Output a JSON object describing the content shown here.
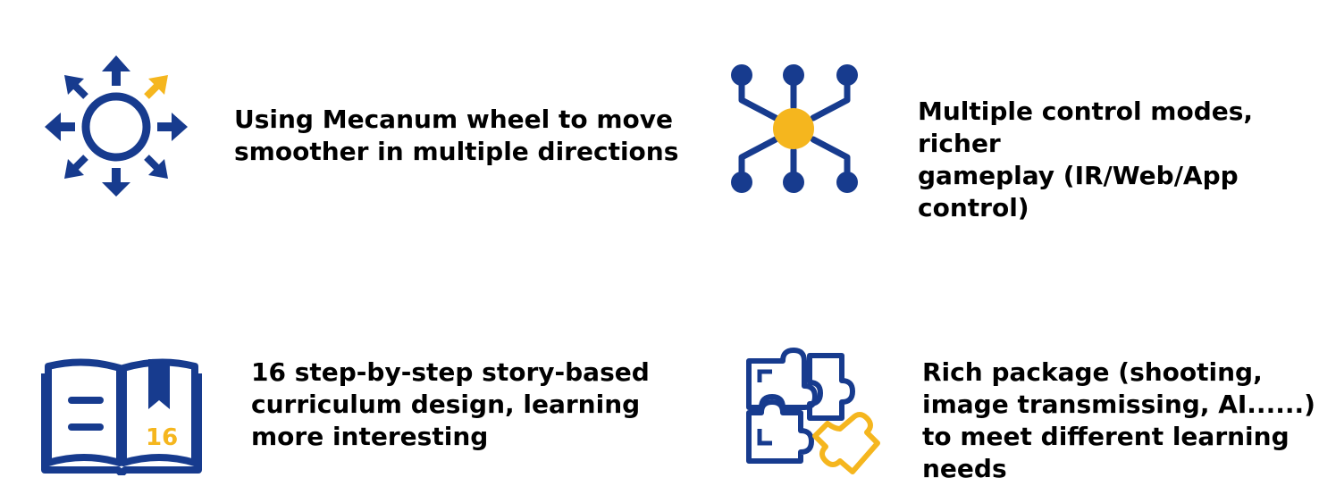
{
  "colors": {
    "primary": "#173b8e",
    "accent": "#f5b61e",
    "text": "#000000"
  },
  "features": [
    {
      "icon": "move-directions-icon",
      "text": "Using Mecanum wheel  to move\nsmoother in multiple directions"
    },
    {
      "icon": "control-modes-icon",
      "text": "Multiple control modes, richer\ngameplay (IR/Web/App\ncontrol)"
    },
    {
      "icon": "curriculum-book-icon",
      "badge": "16",
      "text": "16 step-by-step story-based\ncurriculum design, learning\nmore interesting"
    },
    {
      "icon": "puzzle-icon",
      "text": "Rich package (shooting,\nimage transmissing, AI......)\nto meet different learning\nneeds"
    }
  ]
}
